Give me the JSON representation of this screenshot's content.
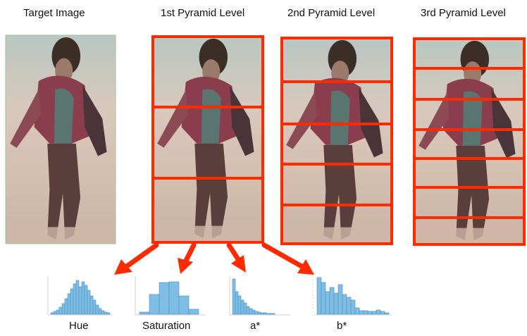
{
  "titles": {
    "target": "Target Image",
    "level1": "1st Pyramid Level",
    "level2": "2nd Pyramid Level",
    "level3": "3rd Pyramid Level"
  },
  "pyramid_levels": [
    {
      "name": "1st Pyramid Level",
      "stripes": 3
    },
    {
      "name": "2nd Pyramid Level",
      "stripes": 5
    },
    {
      "name": "3rd Pyramid Level",
      "stripes": 7
    }
  ],
  "histogram_labels": {
    "hue": "Hue",
    "saturation": "Saturation",
    "a_star": "a*",
    "b_star": "b*"
  },
  "colors": {
    "grid_red": "#ff2a00",
    "bar_fill": "#7fbde4",
    "bar_stroke": "#4a8fc4"
  }
}
